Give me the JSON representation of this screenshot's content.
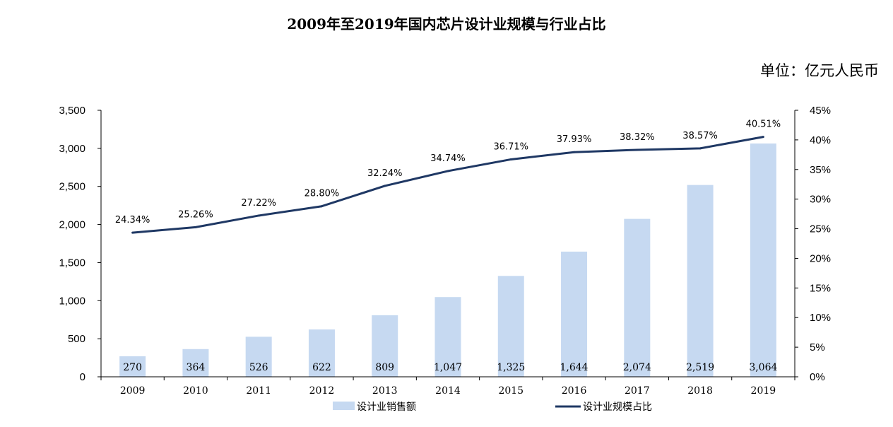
{
  "chart_data": {
    "type": "bar+line",
    "title": "2009年至2019年国内芯片设计业规模与行业占比",
    "unit_note": "单位：亿元人民币",
    "categories": [
      "2009",
      "2010",
      "2011",
      "2012",
      "2013",
      "2014",
      "2015",
      "2016",
      "2017",
      "2018",
      "2019"
    ],
    "series": [
      {
        "name": "设计业销售额",
        "type": "bar",
        "axis": "left",
        "color": "#c6d9f1",
        "values": [
          270,
          364,
          526,
          622,
          809,
          1047,
          1325,
          1644,
          2074,
          2519,
          3064
        ],
        "labels": [
          "270",
          "364",
          "526",
          "622",
          "809",
          "1,047",
          "1,325",
          "1,644",
          "2,074",
          "2,519",
          "3,064"
        ]
      },
      {
        "name": "设计业规模占比",
        "type": "line",
        "axis": "right",
        "color": "#1f3864",
        "values": [
          24.34,
          25.26,
          27.22,
          28.8,
          32.24,
          34.74,
          36.71,
          37.93,
          38.32,
          38.57,
          40.51
        ],
        "labels": [
          "24.34%",
          "25.26%",
          "27.22%",
          "28.80%",
          "32.24%",
          "34.74%",
          "36.71%",
          "37.93%",
          "38.32%",
          "38.57%",
          "40.51%"
        ]
      }
    ],
    "y_left": {
      "min": 0,
      "max": 3500,
      "ticks": [
        "0",
        "500",
        "1,000",
        "1,500",
        "2,000",
        "2,500",
        "3,000",
        "3,500"
      ]
    },
    "y_right": {
      "min": 0,
      "max": 45,
      "ticks": [
        "0%",
        "5%",
        "10%",
        "15%",
        "20%",
        "25%",
        "30%",
        "35%",
        "40%",
        "45%"
      ]
    },
    "grid": false,
    "legend_position": "bottom"
  }
}
